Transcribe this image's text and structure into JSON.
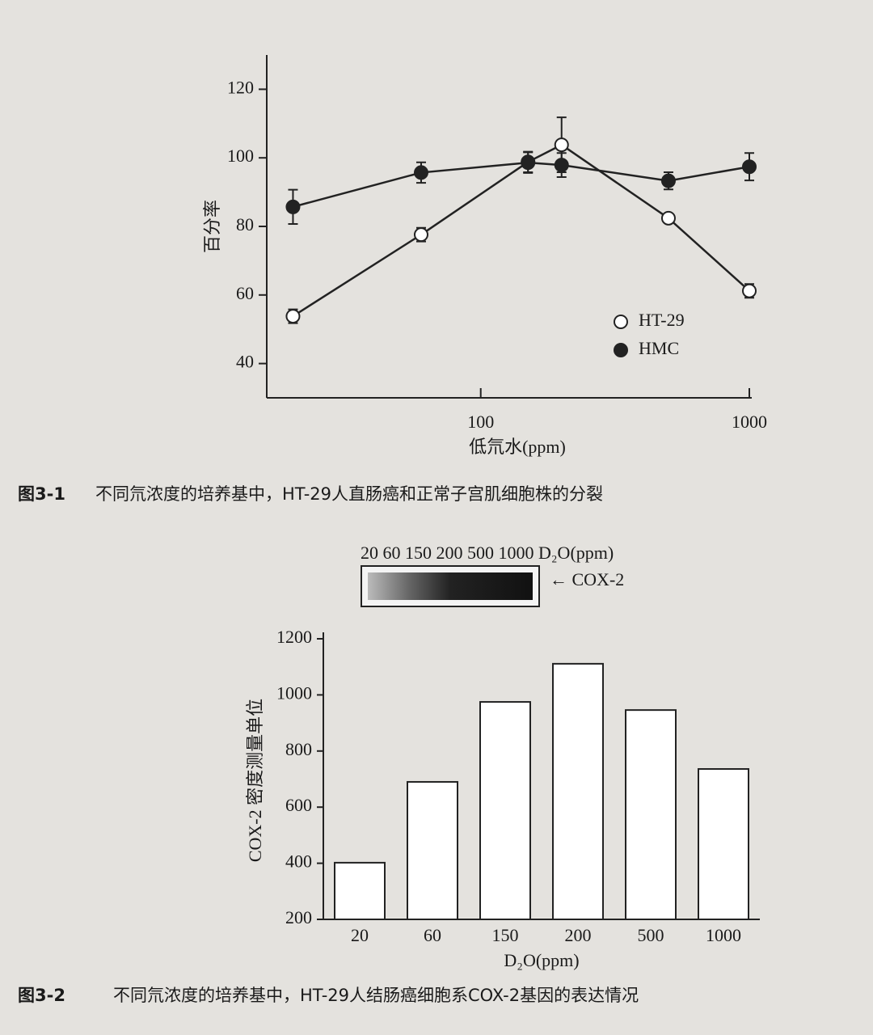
{
  "chart_data": [
    {
      "type": "line",
      "x_scale": "log",
      "x": [
        20,
        60,
        150,
        200,
        500,
        1000
      ],
      "series": [
        {
          "name": "HT-29",
          "color": "#222222",
          "marker": "open",
          "values": [
            53.8,
            77.6,
            98.8,
            103.8,
            82.4,
            61.2
          ],
          "errors": [
            2,
            2,
            3,
            8,
            1,
            2
          ]
        },
        {
          "name": "HMC",
          "color": "#222222",
          "marker": "filled",
          "values": [
            85.7,
            95.7,
            98.6,
            97.9,
            93.3,
            97.4
          ],
          "errors": [
            5,
            3,
            3,
            3.5,
            2.5,
            4
          ]
        }
      ],
      "xlim": [
        17,
        1000
      ],
      "xticks": [
        100,
        1000
      ],
      "ylim": [
        30,
        130
      ],
      "yticks": [
        40,
        60,
        80,
        100,
        120
      ],
      "x_label": "低氘水(ppm)",
      "y_label": "百分率",
      "legend": "lower right",
      "caption_label": "图3-1",
      "caption": "不同氘浓度的培养基中，HT-29人直肠癌和正常子宫肌细胞株的分裂"
    },
    {
      "type": "bar",
      "categories": [
        "20",
        "60",
        "150",
        "200",
        "500",
        "1000"
      ],
      "values": [
        402,
        690,
        975,
        1111,
        946,
        736
      ],
      "color": "#ffffff",
      "ylim": [
        200,
        1200
      ],
      "yticks": [
        200,
        400,
        600,
        800,
        1000,
        1200
      ],
      "x_label": "D₂O(ppm)",
      "y_label": "COX-2 密度测量单位",
      "blot_header": "20 60 150 200 500 1000 D₂O(ppm)",
      "blot_marker": "← COX-2",
      "caption_label": "图3-2",
      "caption": "不同氘浓度的培养基中，HT-29人结肠癌细胞系COX-2基因的表达情况"
    }
  ]
}
